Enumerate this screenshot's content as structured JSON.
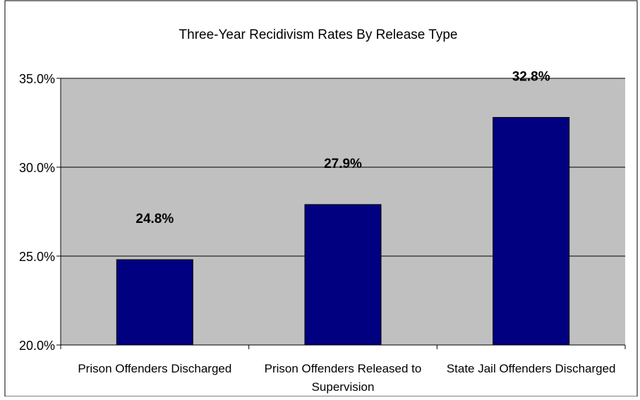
{
  "chart_data": {
    "type": "bar",
    "title": "Three-Year Recidivism Rates By Release Type",
    "categories": [
      [
        "Prison Offenders Discharged"
      ],
      [
        "Prison Offenders Released to",
        "Supervision"
      ],
      [
        "State Jail Offenders Discharged"
      ]
    ],
    "values": [
      24.8,
      27.9,
      32.8
    ],
    "data_labels": [
      "24.8%",
      "27.9%",
      "32.8%"
    ],
    "yticks": [
      20.0,
      25.0,
      30.0,
      35.0
    ],
    "ytick_labels": [
      "20.0%",
      "25.0%",
      "30.0%",
      "35.0%"
    ],
    "ylim": [
      20,
      35
    ],
    "grid": true,
    "legend": "none",
    "colors": {
      "bar": "#000080",
      "plot_background": "#c0c0c0",
      "gridline": "#000000",
      "axis": "#000000"
    }
  }
}
